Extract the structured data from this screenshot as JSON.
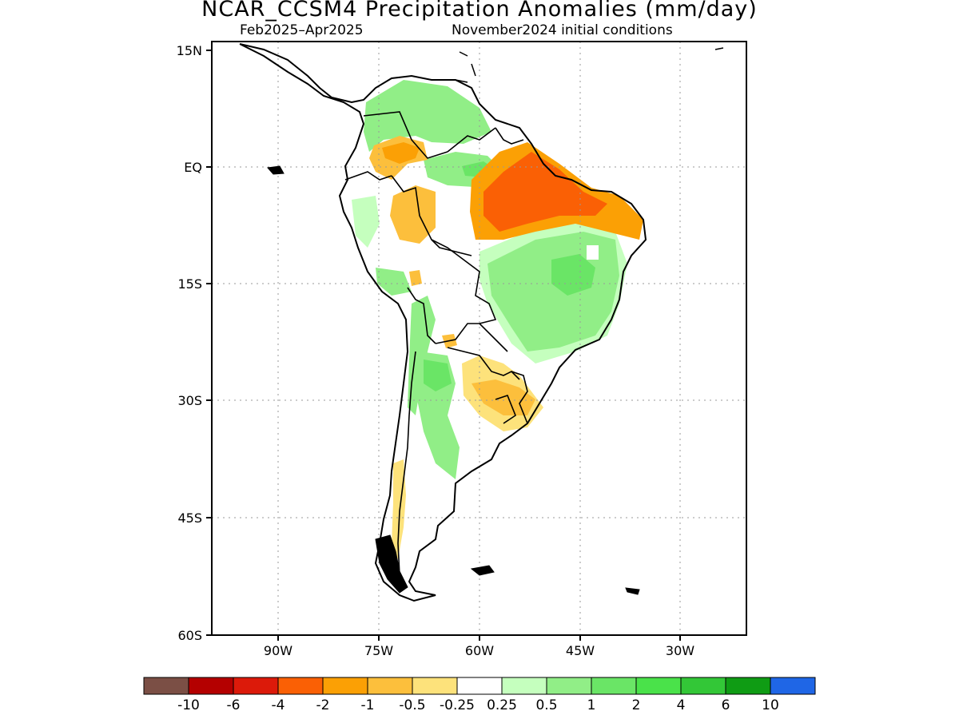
{
  "title": "NCAR_CCSM4 Precipitation Anomalies (mm/day)",
  "subtitle_left": "Feb2025–Apr2025",
  "subtitle_right": "November2024 initial conditions",
  "map": {
    "lat_labels": [
      "15N",
      "EQ",
      "15S",
      "30S",
      "45S",
      "60S"
    ],
    "lon_labels": [
      "90W",
      "75W",
      "60W",
      "45W",
      "30W"
    ],
    "lat_range": [
      -60,
      15
    ],
    "lon_range": [
      -100,
      -20
    ],
    "gridlines": true,
    "region": "South America"
  },
  "legend": {
    "colors": [
      "#7b4f45",
      "#b40000",
      "#dc1a0a",
      "#fa6005",
      "#fba005",
      "#fcbf3c",
      "#fde27b",
      "#ffffff",
      "#c5ffbe",
      "#91ee87",
      "#6ae566",
      "#4ae24a",
      "#33c737",
      "#0f9c14",
      "#1f66e6"
    ],
    "labels": [
      "-10",
      "-6",
      "-4",
      "-2",
      "-1",
      "-0.5",
      "-0.25",
      "0.25",
      "0.5",
      "1",
      "2",
      "4",
      "6",
      "10"
    ]
  }
}
